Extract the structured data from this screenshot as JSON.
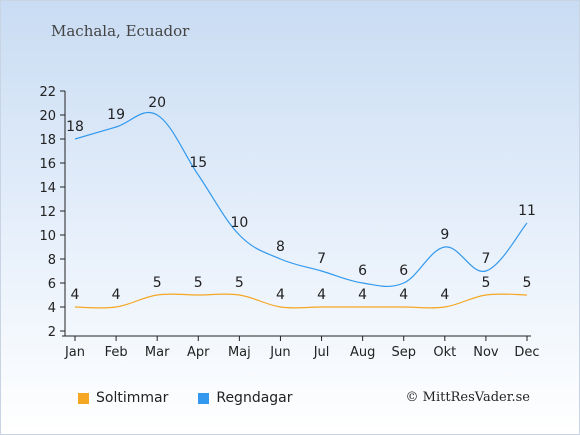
{
  "chart_data": {
    "type": "line",
    "title": "Machala, Ecuador",
    "categories": [
      "Jan",
      "Feb",
      "Mar",
      "Apr",
      "Maj",
      "Jun",
      "Jul",
      "Aug",
      "Sep",
      "Okt",
      "Nov",
      "Dec"
    ],
    "ylim": [
      2,
      22
    ],
    "yticks": [
      2,
      4,
      6,
      8,
      10,
      12,
      14,
      16,
      18,
      20,
      22
    ],
    "grid": false,
    "legend_position": "bottom-left",
    "series": [
      {
        "name": "Soltimmar",
        "color": "#f5a623",
        "values": [
          4,
          4,
          5,
          5,
          5,
          4,
          4,
          4,
          4,
          4,
          5,
          5
        ]
      },
      {
        "name": "Regndagar",
        "color": "#3399ee",
        "values": [
          18,
          19,
          20,
          15,
          10,
          8,
          7,
          6,
          6,
          9,
          7,
          11
        ]
      }
    ]
  },
  "credit": "© MittResVader.se"
}
